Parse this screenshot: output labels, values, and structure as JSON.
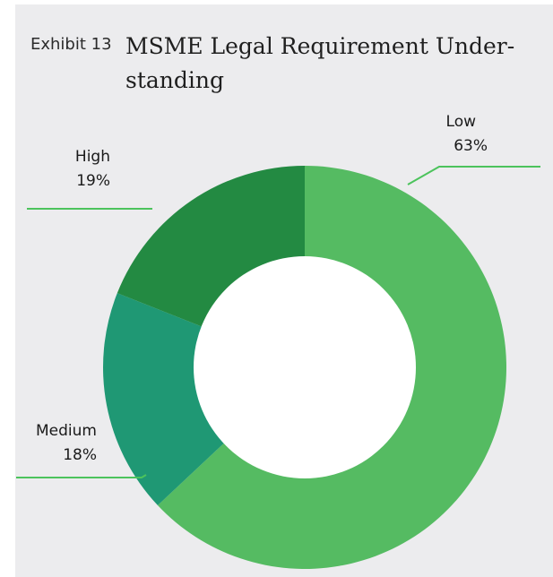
{
  "exhibit": "Exhibit 13",
  "title": "MSME Legal Requirement Under-standing",
  "chart_data": {
    "type": "pie",
    "donut": true,
    "categories": [
      "Low",
      "Medium",
      "High"
    ],
    "values": [
      63,
      18,
      19
    ],
    "value_labels": [
      "63%",
      "18%",
      "19%"
    ],
    "colors": [
      "#55bb62",
      "#1f9874",
      "#238a42"
    ],
    "start": "12 o'clock",
    "direction": "clockwise",
    "leader_line_color": "#4cc35c"
  }
}
